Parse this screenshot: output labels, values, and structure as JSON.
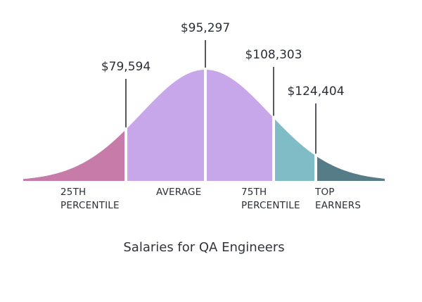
{
  "chart_data": {
    "type": "area",
    "title": "Salaries for QA Engineers",
    "markers": [
      {
        "value_label": "$79,594",
        "value": 79594
      },
      {
        "value_label": "$95,297",
        "value": 95297
      },
      {
        "value_label": "$108,303",
        "value": 108303
      },
      {
        "value_label": "$124,404",
        "value": 124404
      }
    ],
    "segments": [
      {
        "label_lines": [
          "25TH",
          "PERCENTILE"
        ],
        "color": "#c77ba8"
      },
      {
        "label_lines": [
          "AVERAGE"
        ],
        "color": "#c8a6ea"
      },
      {
        "label_lines": [
          "75TH",
          "PERCENTILE"
        ],
        "color": "#c8a6ea"
      },
      {
        "label_lines": [
          "TOP",
          "EARNERS"
        ],
        "color": "#7fbcc6"
      },
      {
        "label_lines": [],
        "color": "#567d87"
      }
    ],
    "colors": {
      "text": "#2b2f36",
      "separator": "#ffffff"
    }
  }
}
